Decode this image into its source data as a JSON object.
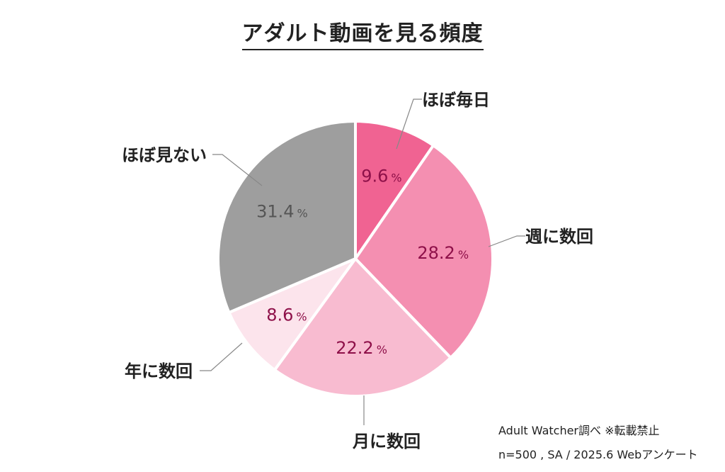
{
  "chart_data": {
    "type": "pie",
    "title": "アダルト動画を見る頻度",
    "unit": "%",
    "slices": [
      {
        "label": "ほぼ毎日",
        "value": 9.6,
        "value_label": "9.6",
        "color": "#F06392",
        "value_color": "#8E1049"
      },
      {
        "label": "週に数回",
        "value": 28.2,
        "value_label": "28.2",
        "color": "#F48FB1",
        "value_color": "#8E1049"
      },
      {
        "label": "月に数回",
        "value": 22.2,
        "value_label": "22.2",
        "color": "#F8BBD0",
        "value_color": "#8E1049"
      },
      {
        "label": "年に数回",
        "value": 8.6,
        "value_label": "8.6",
        "color": "#FCE4EC",
        "value_color": "#8E1049"
      },
      {
        "label": "ほぼ見ない",
        "value": 31.4,
        "value_label": "31.4",
        "color": "#9E9E9E",
        "value_color": "#555555"
      }
    ],
    "start": "top",
    "direction": "clockwise"
  },
  "footnote": {
    "line1": "Adult Watcher調べ  ※転載禁止",
    "line2": "n=500 , SA / 2025.6 Webアンケート"
  }
}
